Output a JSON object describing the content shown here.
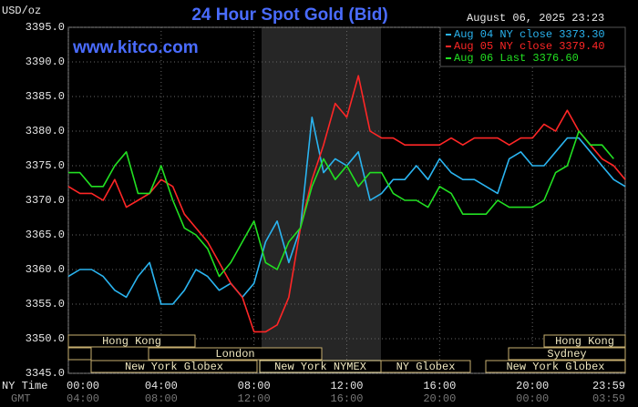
{
  "chart_data": {
    "type": "line",
    "title": "24 Hour Spot Gold (Bid)",
    "y_unit": "USD/oz",
    "timestamp": "August 06, 2025 23:23",
    "source": "www.kitco.com",
    "x_label": "NY Time",
    "x2_label": "GMT",
    "x": [
      0,
      0.5,
      1,
      1.5,
      2,
      2.5,
      3,
      3.5,
      4,
      4.5,
      5,
      5.5,
      6,
      6.5,
      7,
      7.5,
      8,
      8.5,
      9,
      9.5,
      10,
      10.5,
      11,
      11.5,
      12,
      12.5,
      13,
      13.5,
      14,
      14.5,
      15,
      15.5,
      16,
      16.5,
      17,
      17.5,
      18,
      18.5,
      19,
      19.5,
      20,
      20.5,
      21,
      21.5,
      22,
      22.5,
      23,
      23.5,
      24
    ],
    "series": [
      {
        "name": "Aug 04 NY close 3373.30",
        "color": "#2ab4f0",
        "values": [
          3359,
          3360,
          3360,
          3359,
          3357,
          3356,
          3359,
          3361,
          3355,
          3355,
          3357,
          3360,
          3359,
          3357,
          3358,
          3356,
          3358,
          3364,
          3367,
          3361,
          3366,
          3382,
          3374,
          3376,
          3375,
          3377,
          3370,
          3371,
          3373,
          3373,
          3375,
          3373,
          3376,
          3374,
          3373,
          3373,
          3372,
          3371,
          3376,
          3377,
          3375,
          3375,
          3377,
          3379,
          3379,
          3377,
          3375,
          3373,
          3372
        ]
      },
      {
        "name": "Aug 05 NY close 3379.40",
        "color": "#ff2626",
        "values": [
          3372,
          3371,
          3371,
          3370,
          3373,
          3369,
          3370,
          3371,
          3373,
          3372,
          3368,
          3366,
          3364,
          3361,
          3358,
          3356,
          3351,
          3351,
          3352,
          3356,
          3366,
          3373,
          3378,
          3384,
          3382,
          3388,
          3380,
          3379,
          3379,
          3378,
          3378,
          3378,
          3378,
          3379,
          3378,
          3379,
          3379,
          3379,
          3378,
          3379,
          3379,
          3381,
          3380,
          3383,
          3380,
          3378,
          3376,
          3375,
          3373
        ]
      },
      {
        "name": "Aug 06 Last 3376.60",
        "color": "#22e022",
        "values": [
          3374,
          3374,
          3372,
          3372,
          3375,
          3377,
          3371,
          3371,
          3375,
          3370,
          3366,
          3365,
          3363,
          3359,
          3361,
          3364,
          3367,
          3361,
          3360,
          3364,
          3366,
          3372,
          3376,
          3373,
          3375,
          3372,
          3374,
          3374,
          3371,
          3370,
          3370,
          3369,
          3372,
          3371,
          3368,
          3368,
          3368,
          3370,
          3369,
          3369,
          3369,
          3370,
          3374,
          3375,
          3380,
          3378,
          3378,
          3376,
          null
        ]
      }
    ],
    "xlim": [
      0,
      24
    ],
    "xticks": [
      {
        "value": 0,
        "label": "00:00"
      },
      {
        "value": 4,
        "label": "04:00"
      },
      {
        "value": 8,
        "label": "08:00"
      },
      {
        "value": 12,
        "label": "12:00"
      },
      {
        "value": 16,
        "label": "16:00"
      },
      {
        "value": 20,
        "label": "20:00"
      },
      {
        "value": 24,
        "label": "23:59"
      }
    ],
    "x2_tick_labels": [
      "04:00",
      "08:00",
      "12:00",
      "16:00",
      "20:00",
      "00:00",
      "03:59"
    ],
    "ylim": [
      3345,
      3395
    ],
    "yticks": [
      {
        "value": 3345,
        "label": "3345.0"
      },
      {
        "value": 3350,
        "label": "3350.0"
      },
      {
        "value": 3355,
        "label": "3355.0"
      },
      {
        "value": 3360,
        "label": "3360.0"
      },
      {
        "value": 3365,
        "label": "3365.0"
      },
      {
        "value": 3370,
        "label": "3370.0"
      },
      {
        "value": 3375,
        "label": "3375.0"
      },
      {
        "value": 3380,
        "label": "3380.0"
      },
      {
        "value": 3385,
        "label": "3385.0"
      },
      {
        "value": 3390,
        "label": "3390.0"
      },
      {
        "value": 3395,
        "label": "3395.0"
      }
    ],
    "sessions": [
      "Hong Kong",
      "London",
      "New York Globex",
      "New York NYMEX",
      "NY Globex",
      "Sydney",
      "Hong Kong",
      "New York Globex"
    ],
    "grid": true
  }
}
